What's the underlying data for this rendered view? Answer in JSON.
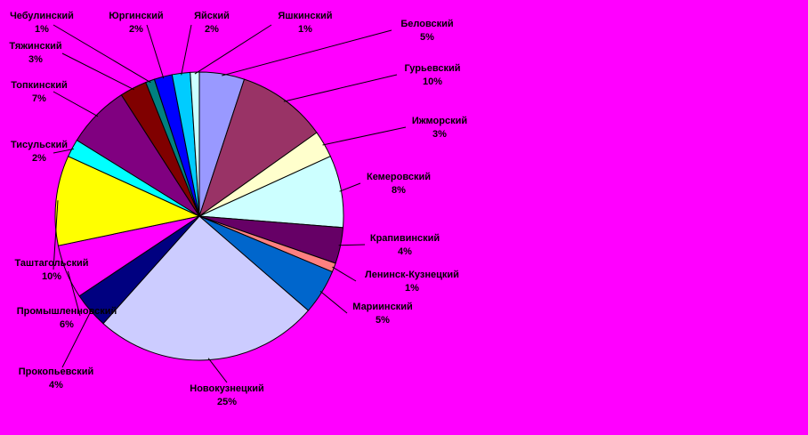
{
  "colors": {
    "background": "#ff00ff",
    "slice_outline": "#000000",
    "leader_line": "#000000"
  },
  "chart_data": {
    "type": "pie",
    "title": "",
    "start_angle_deg": 0,
    "direction": "clockwise",
    "slices": [
      {
        "label": "Беловский",
        "pct_label": "5%",
        "value": 5,
        "color": "#9999ff"
      },
      {
        "label": "Гурьевский",
        "pct_label": "10%",
        "value": 10,
        "color": "#993366"
      },
      {
        "label": "Ижморский",
        "pct_label": "3%",
        "value": 3,
        "color": "#ffffcc"
      },
      {
        "label": "Кемеровский",
        "pct_label": "8%",
        "value": 8,
        "color": "#ccffff"
      },
      {
        "label": "Крапивинский",
        "pct_label": "4%",
        "value": 4,
        "color": "#660066"
      },
      {
        "label": "Ленинск-Кузнецкий",
        "pct_label": "1%",
        "value": 1,
        "color": "#ff8080"
      },
      {
        "label": "Мариинский",
        "pct_label": "5%",
        "value": 5,
        "color": "#0066cc"
      },
      {
        "label": "Новокузнецкий",
        "pct_label": "25%",
        "value": 25,
        "color": "#ccccff"
      },
      {
        "label": "Прокопьевский",
        "pct_label": "4%",
        "value": 4,
        "color": "#000080"
      },
      {
        "label": "Промышленновский",
        "pct_label": "6%",
        "value": 6,
        "color": "#ff00ff"
      },
      {
        "label": "Таштагольский",
        "pct_label": "10%",
        "value": 10,
        "color": "#ffff00"
      },
      {
        "label": "Тисульский",
        "pct_label": "2%",
        "value": 2,
        "color": "#00ffff"
      },
      {
        "label": "Топкинский",
        "pct_label": "7%",
        "value": 7,
        "color": "#800080"
      },
      {
        "label": "Тяжинский",
        "pct_label": "3%",
        "value": 3,
        "color": "#800000"
      },
      {
        "label": "Чебулинский",
        "pct_label": "1%",
        "value": 1,
        "color": "#008080"
      },
      {
        "label": "Юргинский",
        "pct_label": "2%",
        "value": 2,
        "color": "#0000ff"
      },
      {
        "label": "Яйский",
        "pct_label": "2%",
        "value": 2,
        "color": "#00ccff"
      },
      {
        "label": "Яшкинский",
        "pct_label": "1%",
        "value": 1,
        "color": "#ccffff"
      }
    ]
  }
}
